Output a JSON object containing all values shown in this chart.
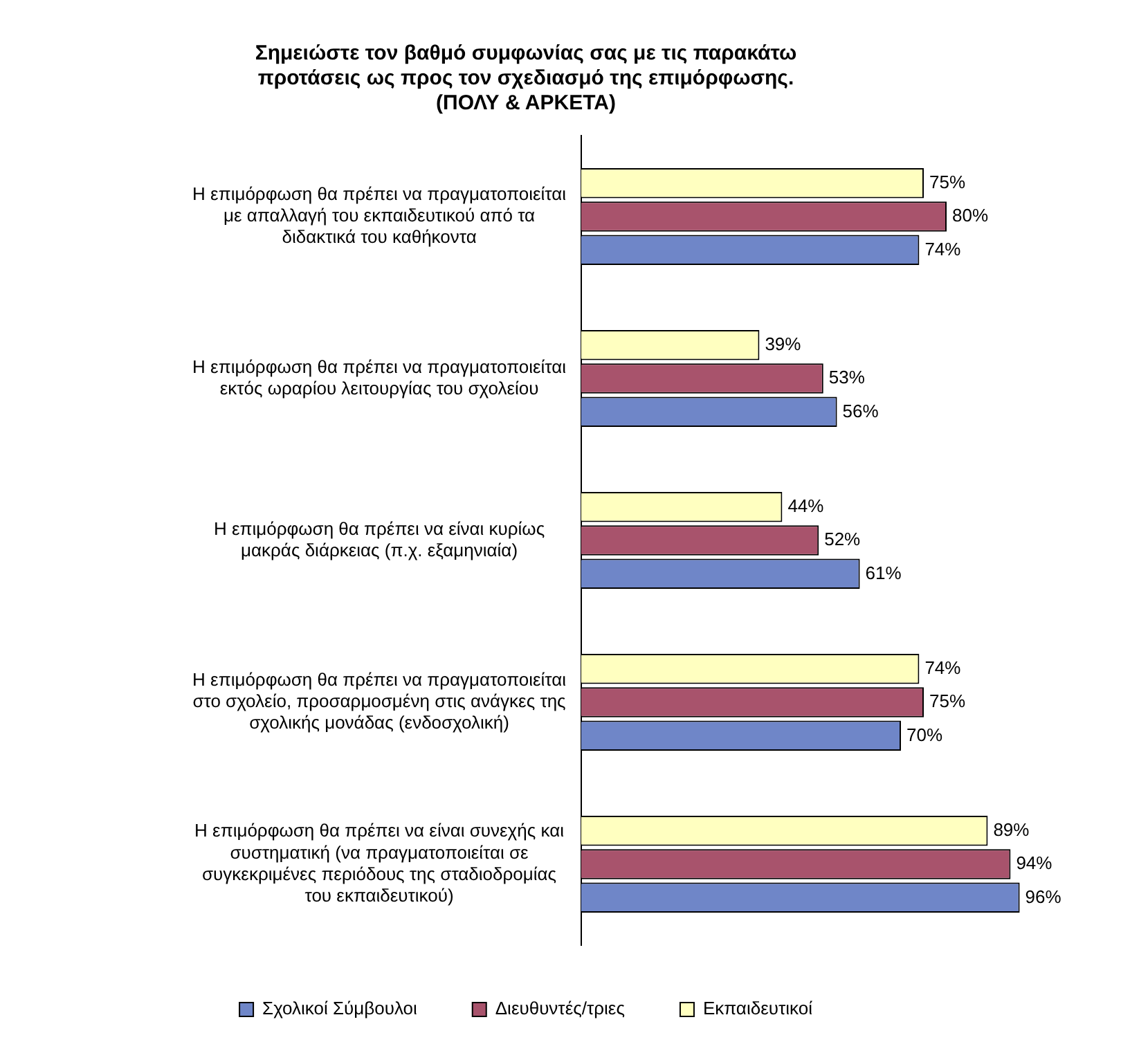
{
  "chart_data": {
    "type": "bar",
    "orientation": "horizontal",
    "title": "Σημειώστε τον βαθμό συμφωνίας σας με τις παρακάτω\nπροτάσεις ως προς τον σχεδιασμό της επιμόρφωσης.\n(ΠΟΛΥ & ΑΡΚΕΤΑ)",
    "categories": [
      "Η επιμόρφωση θα πρέπει να πραγματοποιείται με απαλλαγή του εκπαιδευτικού από τα διδακτικά του καθήκοντα",
      "Η επιμόρφωση θα πρέπει να πραγματοποιείται εκτός ωραρίου λειτουργίας του σχολείου",
      "Η επιμόρφωση θα πρέπει να είναι κυρίως μακράς διάρκειας (π.χ. εξαμηνιαία)",
      "Η επιμόρφωση θα πρέπει να πραγματοποιείται στο σχολείο, προσαρμοσμένη στις ανάγκες της σχολικής μονάδας (ενδοσχολική)",
      "Η επιμόρφωση θα πρέπει να είναι συνεχής και συστηματική (να πραγματοποιείται σε συγκεκριμένες περιόδους της σταδιοδρομίας του εκπαιδευτικού)"
    ],
    "series": [
      {
        "name": "Σχολικοί Σύμβουλοι",
        "color": "#6f86c8",
        "values": [
          74,
          56,
          61,
          70,
          96
        ],
        "value_labels": [
          "74%",
          "56%",
          "61%",
          "70%",
          "96%"
        ]
      },
      {
        "name": "Διευθυντές/τριες",
        "color": "#a8536c",
        "values": [
          80,
          53,
          52,
          75,
          94
        ],
        "value_labels": [
          "80%",
          "53%",
          "52%",
          "75%",
          "94%"
        ]
      },
      {
        "name": "Εκπαιδευτικοί",
        "color": "#ffffc0",
        "values": [
          75,
          39,
          44,
          74,
          89
        ],
        "value_labels": [
          "75%",
          "39%",
          "44%",
          "74%",
          "89%"
        ]
      }
    ],
    "tick_labels": "y",
    "grid": false,
    "legend": "bottom"
  }
}
